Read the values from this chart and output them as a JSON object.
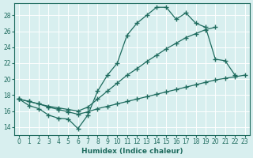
{
  "xlabel": "Humidex (Indice chaleur)",
  "background_color": "#d8efef",
  "line_color": "#1e6b5e",
  "grid_color": "#c0e0e0",
  "xlim": [
    -0.5,
    23.5
  ],
  "ylim": [
    13.0,
    29.5
  ],
  "xticks": [
    0,
    1,
    2,
    3,
    4,
    5,
    6,
    7,
    8,
    9,
    10,
    11,
    12,
    13,
    14,
    15,
    16,
    17,
    18,
    19,
    20,
    21,
    22,
    23
  ],
  "yticks": [
    14,
    16,
    18,
    20,
    22,
    24,
    26,
    28
  ],
  "line_spiky_x": [
    0,
    1,
    2,
    3,
    4,
    5,
    6,
    7,
    8,
    9,
    10,
    11,
    12,
    13,
    14,
    15,
    16,
    17,
    18,
    19,
    20,
    21,
    22
  ],
  "line_spiky_y": [
    17.5,
    16.7,
    16.3,
    15.5,
    15.1,
    15.0,
    13.8,
    15.5,
    18.5,
    20.5,
    22.0,
    25.5,
    27.0,
    28.0,
    29.0,
    29.0,
    27.5,
    28.3,
    27.0,
    26.5,
    22.5,
    22.3,
    20.5
  ],
  "line_mid_x": [
    0,
    1,
    2,
    3,
    4,
    5,
    6,
    7,
    8,
    9,
    10,
    11,
    12,
    13,
    14,
    15,
    16,
    17,
    18,
    19,
    20
  ],
  "line_mid_y": [
    17.5,
    17.2,
    16.9,
    16.6,
    16.4,
    16.2,
    16.0,
    16.5,
    17.5,
    18.5,
    19.5,
    20.5,
    21.3,
    22.2,
    23.0,
    23.8,
    24.5,
    25.2,
    25.7,
    26.2,
    26.5
  ],
  "line_low_x": [
    0,
    1,
    2,
    3,
    4,
    5,
    6,
    7,
    8,
    9,
    10,
    11,
    12,
    13,
    14,
    15,
    16,
    17,
    18,
    19,
    20,
    21,
    22,
    23
  ],
  "line_low_y": [
    17.5,
    17.2,
    16.9,
    16.5,
    16.2,
    15.9,
    15.6,
    15.9,
    16.3,
    16.6,
    16.9,
    17.2,
    17.5,
    17.8,
    18.1,
    18.4,
    18.7,
    19.0,
    19.3,
    19.6,
    19.9,
    20.1,
    20.3,
    20.5
  ]
}
